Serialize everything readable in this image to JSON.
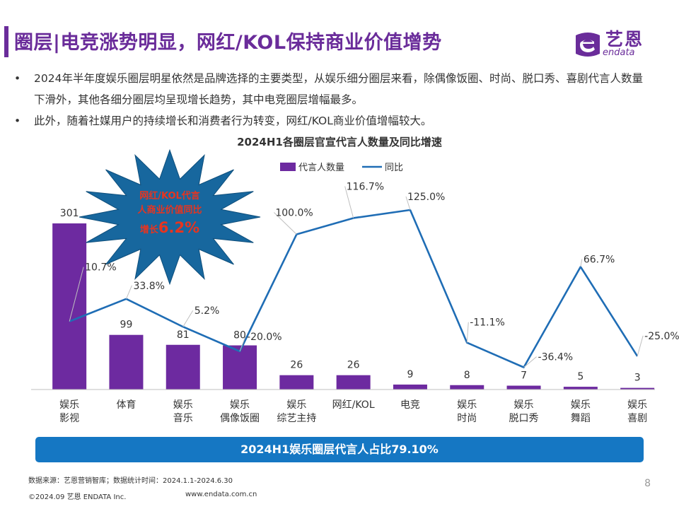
{
  "header": {
    "title": "圈层|电竞涨势明显，网红/KOL保持商业价值增势",
    "logo_cn": "艺恩",
    "logo_en": "endata",
    "colors": {
      "brand": "#6a2c9a",
      "banner": "#1577c3"
    }
  },
  "bullets": [
    "2024年半年度娱乐圈层明星依然是品牌选择的主要类型，从娱乐细分圈层来看，除偶像饭圈、时尚、脱口秀、喜剧代言人数量下滑外，其他各细分圈层均呈现增长趋势，其中电竞圈层增幅最多。",
    "此外，随着社媒用户的持续增长和消费者行为转变，网红/KOL商业价值增幅较大。"
  ],
  "callout": {
    "line1": "网红/KOL代言",
    "line2": "人商业价值同比",
    "line3_prefix": "增长",
    "line3_value": "6.2%"
  },
  "banner": "2024H1娱乐圈层代言人占比79.10%",
  "footer": {
    "source": "数据来源：艺恩营销智库；数据统计时间：2024.1.1-2024.6.30",
    "copyright": "©2024.09 艺恩 ENDATA Inc.",
    "website": "www.endata.com.cn",
    "page": "8"
  },
  "chart_data": {
    "type": "bar",
    "title": "2024H1各圈层官宣代言人数量及同比增速",
    "categories": [
      [
        "娱乐",
        "影视"
      ],
      [
        "体育"
      ],
      [
        "娱乐",
        "音乐"
      ],
      [
        "娱乐",
        "偶像饭圈"
      ],
      [
        "娱乐",
        "综艺主持"
      ],
      [
        "网红/KOL"
      ],
      [
        "电竞"
      ],
      [
        "娱乐",
        "时尚"
      ],
      [
        "娱乐",
        "脱口秀"
      ],
      [
        "娱乐",
        "舞蹈"
      ],
      [
        "娱乐",
        "喜剧"
      ]
    ],
    "series": [
      {
        "name": "代言人数量",
        "type": "bar",
        "color": "#6d2aa0",
        "values": [
          301,
          99,
          81,
          80,
          26,
          26,
          9,
          8,
          7,
          5,
          3
        ]
      },
      {
        "name": "同比",
        "type": "line",
        "color": "#1f6db5",
        "values": [
          10.7,
          33.8,
          5.2,
          -20.0,
          100.0,
          116.7,
          125.0,
          -11.1,
          -36.4,
          66.7,
          -25.0
        ],
        "labels": [
          "10.7%",
          "33.8%",
          "5.2%",
          "-20.0%",
          "100.0%",
          "116.7%",
          "125.0%",
          "-11.1%",
          "-36.4%",
          "66.7%",
          "-25.0%"
        ]
      }
    ],
    "legend_position": "top-center",
    "grid": false
  }
}
